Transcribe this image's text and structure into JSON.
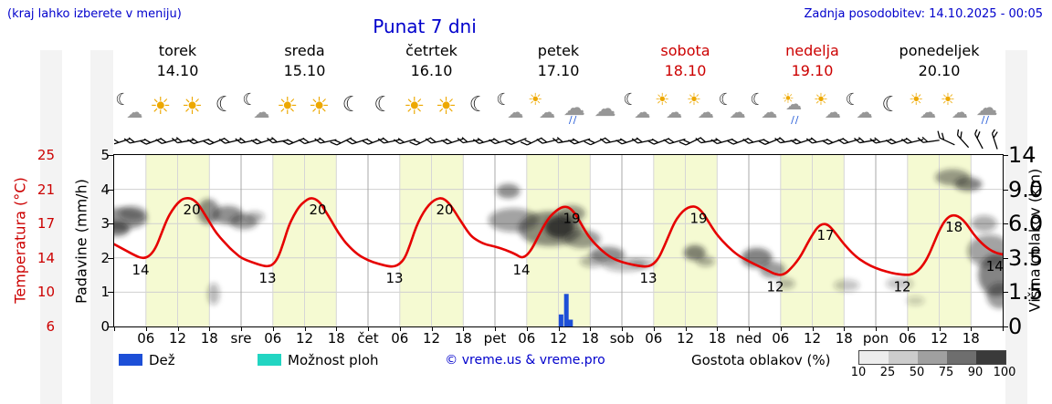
{
  "header": {
    "hint": "(kraj lahko izberete v meniju)",
    "title": "Punat 7 dni",
    "updated": "Zadnja posodobitev: 14.10.2025 - 00:05"
  },
  "colors": {
    "accent_blue": "#0000cc",
    "temp_red": "#e60000",
    "weekend_red": "#cc0000",
    "rain_blue": "#1d4fd7",
    "shower_cyan": "#22d5c2",
    "band_yellow": "#f5fad2"
  },
  "axes": {
    "temp_label": "Temperatura (°C)",
    "precip_label": "Padavine (mm/h)",
    "cloud_label": "Višina oblakov (km)",
    "temp_ticks": [
      "25",
      "21",
      "17",
      "14",
      "10",
      "6"
    ],
    "precip_ticks": [
      "5",
      "4",
      "3",
      "2",
      "1",
      "0"
    ],
    "cloud_ticks": [
      "14",
      "9.0",
      "6.0",
      "3.5",
      "1.5",
      "0"
    ]
  },
  "days": [
    {
      "name": "torek",
      "date": "14.10",
      "weekend": false
    },
    {
      "name": "sreda",
      "date": "15.10",
      "weekend": false
    },
    {
      "name": "četrtek",
      "date": "16.10",
      "weekend": false
    },
    {
      "name": "petek",
      "date": "17.10",
      "weekend": false
    },
    {
      "name": "sobota",
      "date": "18.10",
      "weekend": true
    },
    {
      "name": "nedelja",
      "date": "19.10",
      "weekend": true
    },
    {
      "name": "ponedeljek",
      "date": "20.10",
      "weekend": false
    }
  ],
  "x_ticks": [
    {
      "h": 6,
      "t": "06"
    },
    {
      "h": 12,
      "t": "12"
    },
    {
      "h": 18,
      "t": "18"
    },
    {
      "h": 24,
      "t": "sre"
    },
    {
      "h": 30,
      "t": "06"
    },
    {
      "h": 36,
      "t": "12"
    },
    {
      "h": 42,
      "t": "18"
    },
    {
      "h": 48,
      "t": "čet"
    },
    {
      "h": 54,
      "t": "06"
    },
    {
      "h": 60,
      "t": "12"
    },
    {
      "h": 66,
      "t": "18"
    },
    {
      "h": 72,
      "t": "pet"
    },
    {
      "h": 78,
      "t": "06"
    },
    {
      "h": 84,
      "t": "12"
    },
    {
      "h": 90,
      "t": "18"
    },
    {
      "h": 96,
      "t": "sob"
    },
    {
      "h": 102,
      "t": "06"
    },
    {
      "h": 108,
      "t": "12"
    },
    {
      "h": 114,
      "t": "18"
    },
    {
      "h": 120,
      "t": "ned"
    },
    {
      "h": 126,
      "t": "06"
    },
    {
      "h": 132,
      "t": "12"
    },
    {
      "h": 138,
      "t": "18"
    },
    {
      "h": 144,
      "t": "pon"
    },
    {
      "h": 150,
      "t": "06"
    },
    {
      "h": 156,
      "t": "12"
    },
    {
      "h": 162,
      "t": "18"
    }
  ],
  "sky_icons": [
    "moon-cloud",
    "sun",
    "sun",
    "moon",
    "moon-cloud",
    "sun",
    "sun",
    "moon",
    "moon",
    "sun",
    "sun",
    "moon",
    "moon-cloud",
    "sun-cloud",
    "cloud-rain",
    "cloud",
    "moon-cloud",
    "sun-cloud",
    "sun-cloud",
    "moon-cloud",
    "moon-cloud",
    "sun-cloud-rain",
    "sun-cloud",
    "moon-cloud",
    "moon",
    "sun-cloud",
    "sun-cloud",
    "cloud-rain"
  ],
  "wind_barb_angles": [
    -18,
    -12,
    -20,
    -15,
    -10,
    -16,
    -22,
    -14,
    -12,
    -18,
    -10,
    -22,
    -16,
    -12,
    -26,
    -18,
    -20,
    -12,
    -16,
    -26,
    -12,
    -18,
    -10,
    -15,
    -16,
    -22,
    -26,
    -14,
    -10,
    -18,
    -24,
    -12,
    -18,
    -12,
    -20,
    -16,
    -26,
    -10,
    -16,
    -20,
    -14,
    -22,
    -10,
    -18,
    -12,
    -20,
    -16,
    -10,
    -12,
    -18,
    -14,
    -8,
    25,
    48,
    62,
    72
  ],
  "legend": {
    "rain": "Dež",
    "showers": "Možnost ploh",
    "copyright": "© vreme.us & vreme.pro",
    "cloud_density": "Gostota oblakov (%)",
    "scale_labels": [
      "10",
      "25",
      "50",
      "75",
      "90",
      "100"
    ],
    "scale_grays": [
      "#ededed",
      "#cccccc",
      "#a0a0a0",
      "#6e6e6e",
      "#3a3a3a"
    ]
  },
  "chart_data": {
    "type": "line",
    "title": "Punat 7 dni",
    "x_unit": "hours from torek 14.10 00:00",
    "x_range": [
      0,
      168
    ],
    "daylight_band_hours": [
      6,
      18
    ],
    "temp_axis_tick_values": [
      6,
      10,
      14,
      17,
      21,
      25
    ],
    "precip_axis_range": [
      0,
      5
    ],
    "cloud_axis_tick_values": [
      0,
      1.5,
      3.5,
      6.0,
      9.0,
      14
    ],
    "daily_summary": {
      "days": [
        "torek 14.10",
        "sreda 15.10",
        "četrtek 16.10",
        "petek 17.10",
        "sobota 18.10",
        "nedelja 19.10",
        "ponedeljek 20.10"
      ],
      "high_c": [
        20,
        20,
        20,
        19,
        19,
        17,
        18
      ],
      "low_c": [
        14,
        13,
        13,
        14,
        13,
        12,
        12
      ]
    },
    "temperature_points": [
      [
        0,
        15.2
      ],
      [
        2,
        14.7
      ],
      [
        4,
        14.2
      ],
      [
        5,
        14
      ],
      [
        6,
        14
      ],
      [
        7,
        14.3
      ],
      [
        8,
        15
      ],
      [
        9,
        16.2
      ],
      [
        10,
        17.5
      ],
      [
        11,
        18.6
      ],
      [
        12,
        19.4
      ],
      [
        13,
        19.9
      ],
      [
        14,
        20
      ],
      [
        15,
        19.8
      ],
      [
        16,
        19.2
      ],
      [
        17,
        18.2
      ],
      [
        18,
        17.2
      ],
      [
        19,
        16.4
      ],
      [
        20,
        15.8
      ],
      [
        21,
        15.3
      ],
      [
        22,
        14.8
      ],
      [
        23,
        14.4
      ],
      [
        24,
        14
      ],
      [
        26,
        13.5
      ],
      [
        28,
        13.1
      ],
      [
        29,
        13
      ],
      [
        30,
        13.2
      ],
      [
        31,
        14
      ],
      [
        32,
        15.3
      ],
      [
        33,
        16.8
      ],
      [
        34,
        18
      ],
      [
        35,
        19
      ],
      [
        36,
        19.6
      ],
      [
        37,
        20
      ],
      [
        38,
        19.9
      ],
      [
        39,
        19.4
      ],
      [
        40,
        18.4
      ],
      [
        41,
        17.4
      ],
      [
        42,
        16.5
      ],
      [
        43,
        15.8
      ],
      [
        44,
        15.2
      ],
      [
        46,
        14.3
      ],
      [
        48,
        13.7
      ],
      [
        50,
        13.3
      ],
      [
        52,
        13
      ],
      [
        53,
        13
      ],
      [
        54,
        13.3
      ],
      [
        55,
        14
      ],
      [
        56,
        15.2
      ],
      [
        57,
        16.6
      ],
      [
        58,
        17.8
      ],
      [
        59,
        18.8
      ],
      [
        60,
        19.5
      ],
      [
        61,
        19.9
      ],
      [
        62,
        20
      ],
      [
        63,
        19.6
      ],
      [
        64,
        18.8
      ],
      [
        65,
        17.8
      ],
      [
        66,
        16.9
      ],
      [
        67,
        16.2
      ],
      [
        68,
        15.7
      ],
      [
        70,
        15.2
      ],
      [
        72,
        15
      ],
      [
        74,
        14.7
      ],
      [
        76,
        14.3
      ],
      [
        77,
        14
      ],
      [
        78,
        14.2
      ],
      [
        79,
        14.8
      ],
      [
        80,
        15.7
      ],
      [
        81,
        16.6
      ],
      [
        82,
        17.5
      ],
      [
        83,
        18.2
      ],
      [
        84,
        18.7
      ],
      [
        85,
        19
      ],
      [
        86,
        18.9
      ],
      [
        87,
        18.3
      ],
      [
        88,
        17.3
      ],
      [
        89,
        16.4
      ],
      [
        90,
        15.7
      ],
      [
        92,
        14.7
      ],
      [
        94,
        14
      ],
      [
        96,
        13.5
      ],
      [
        98,
        13.2
      ],
      [
        100,
        13
      ],
      [
        101,
        13
      ],
      [
        102,
        13.3
      ],
      [
        103,
        14
      ],
      [
        104,
        15
      ],
      [
        105,
        16.1
      ],
      [
        106,
        17.2
      ],
      [
        107,
        18.1
      ],
      [
        108,
        18.7
      ],
      [
        109,
        19
      ],
      [
        110,
        19
      ],
      [
        111,
        18.5
      ],
      [
        112,
        17.6
      ],
      [
        113,
        16.7
      ],
      [
        114,
        16
      ],
      [
        116,
        15
      ],
      [
        118,
        14.2
      ],
      [
        120,
        13.6
      ],
      [
        122,
        13
      ],
      [
        124,
        12.4
      ],
      [
        125,
        12.1
      ],
      [
        126,
        12
      ],
      [
        127,
        12.2
      ],
      [
        128,
        12.8
      ],
      [
        129,
        13.5
      ],
      [
        130,
        14.3
      ],
      [
        131,
        15.2
      ],
      [
        132,
        16
      ],
      [
        133,
        16.7
      ],
      [
        134,
        17
      ],
      [
        135,
        16.9
      ],
      [
        136,
        16.4
      ],
      [
        137,
        15.8
      ],
      [
        138,
        15.2
      ],
      [
        140,
        14.2
      ],
      [
        142,
        13.4
      ],
      [
        144,
        12.8
      ],
      [
        146,
        12.4
      ],
      [
        148,
        12.1
      ],
      [
        150,
        12
      ],
      [
        151,
        12.1
      ],
      [
        152,
        12.5
      ],
      [
        153,
        13.2
      ],
      [
        154,
        14.2
      ],
      [
        155,
        15.3
      ],
      [
        156,
        16.4
      ],
      [
        157,
        17.3
      ],
      [
        158,
        17.9
      ],
      [
        159,
        18
      ],
      [
        160,
        17.7
      ],
      [
        161,
        17.1
      ],
      [
        162,
        16.4
      ],
      [
        163,
        15.8
      ],
      [
        164,
        15.3
      ],
      [
        165,
        14.9
      ],
      [
        166,
        14.6
      ],
      [
        167,
        14.4
      ],
      [
        168,
        14.3
      ]
    ],
    "temp_labels": [
      [
        5,
        14,
        "14"
      ],
      [
        14.7,
        20,
        "20"
      ],
      [
        29,
        13,
        "13"
      ],
      [
        38.5,
        20,
        "20"
      ],
      [
        53,
        13,
        "13"
      ],
      [
        62.5,
        20,
        "20"
      ],
      [
        77,
        14,
        "14"
      ],
      [
        86.5,
        19,
        "19"
      ],
      [
        101,
        13,
        "13"
      ],
      [
        110.5,
        19,
        "19"
      ],
      [
        125,
        12,
        "12"
      ],
      [
        134.5,
        17,
        "17"
      ],
      [
        149,
        12,
        "12"
      ],
      [
        158.8,
        18,
        "18"
      ],
      [
        166.5,
        14.3,
        "14"
      ]
    ],
    "rain_bars": [
      [
        84.5,
        0.35
      ],
      [
        85.5,
        0.95
      ],
      [
        86.3,
        0.2
      ]
    ],
    "cloud_blobs": [
      [
        1.5,
        3.15,
        55,
        24,
        0.5
      ],
      [
        0.5,
        2.85,
        28,
        16,
        0.6
      ],
      [
        3.5,
        3.3,
        30,
        16,
        0.35
      ],
      [
        17.8,
        3.35,
        24,
        28,
        0.5
      ],
      [
        18.8,
        0.95,
        13,
        24,
        0.3
      ],
      [
        21.5,
        3.25,
        34,
        20,
        0.5
      ],
      [
        24.5,
        3.05,
        30,
        16,
        0.45
      ],
      [
        26.5,
        3.2,
        22,
        12,
        0.3
      ],
      [
        74.5,
        3.95,
        26,
        16,
        0.5
      ],
      [
        75.5,
        3.1,
        55,
        26,
        0.4
      ],
      [
        82.5,
        2.85,
        70,
        38,
        0.5
      ],
      [
        84.2,
        2.9,
        32,
        24,
        0.8
      ],
      [
        86.5,
        3.3,
        30,
        18,
        0.45
      ],
      [
        88.5,
        2.55,
        40,
        20,
        0.45
      ],
      [
        90.5,
        1.9,
        28,
        13,
        0.3
      ],
      [
        93.2,
        2.1,
        38,
        17,
        0.5
      ],
      [
        96.5,
        1.8,
        48,
        15,
        0.3
      ],
      [
        100,
        1.85,
        28,
        11,
        0.25
      ],
      [
        109.8,
        2.15,
        24,
        17,
        0.55
      ],
      [
        111.8,
        1.9,
        20,
        11,
        0.35
      ],
      [
        121.5,
        2.0,
        34,
        22,
        0.55
      ],
      [
        124.5,
        1.65,
        28,
        18,
        0.45
      ],
      [
        127,
        1.25,
        20,
        12,
        0.3
      ],
      [
        138.5,
        1.2,
        28,
        13,
        0.25
      ],
      [
        148.5,
        1.25,
        30,
        13,
        0.25
      ],
      [
        151.5,
        0.75,
        20,
        10,
        0.2
      ],
      [
        158.5,
        4.35,
        38,
        18,
        0.45
      ],
      [
        161.5,
        4.15,
        30,
        15,
        0.55
      ],
      [
        164.5,
        3.0,
        28,
        18,
        0.35
      ],
      [
        165.5,
        2.2,
        48,
        36,
        0.4
      ],
      [
        166.8,
        1.5,
        40,
        46,
        0.55
      ],
      [
        167.4,
        0.9,
        28,
        28,
        0.45
      ]
    ]
  }
}
